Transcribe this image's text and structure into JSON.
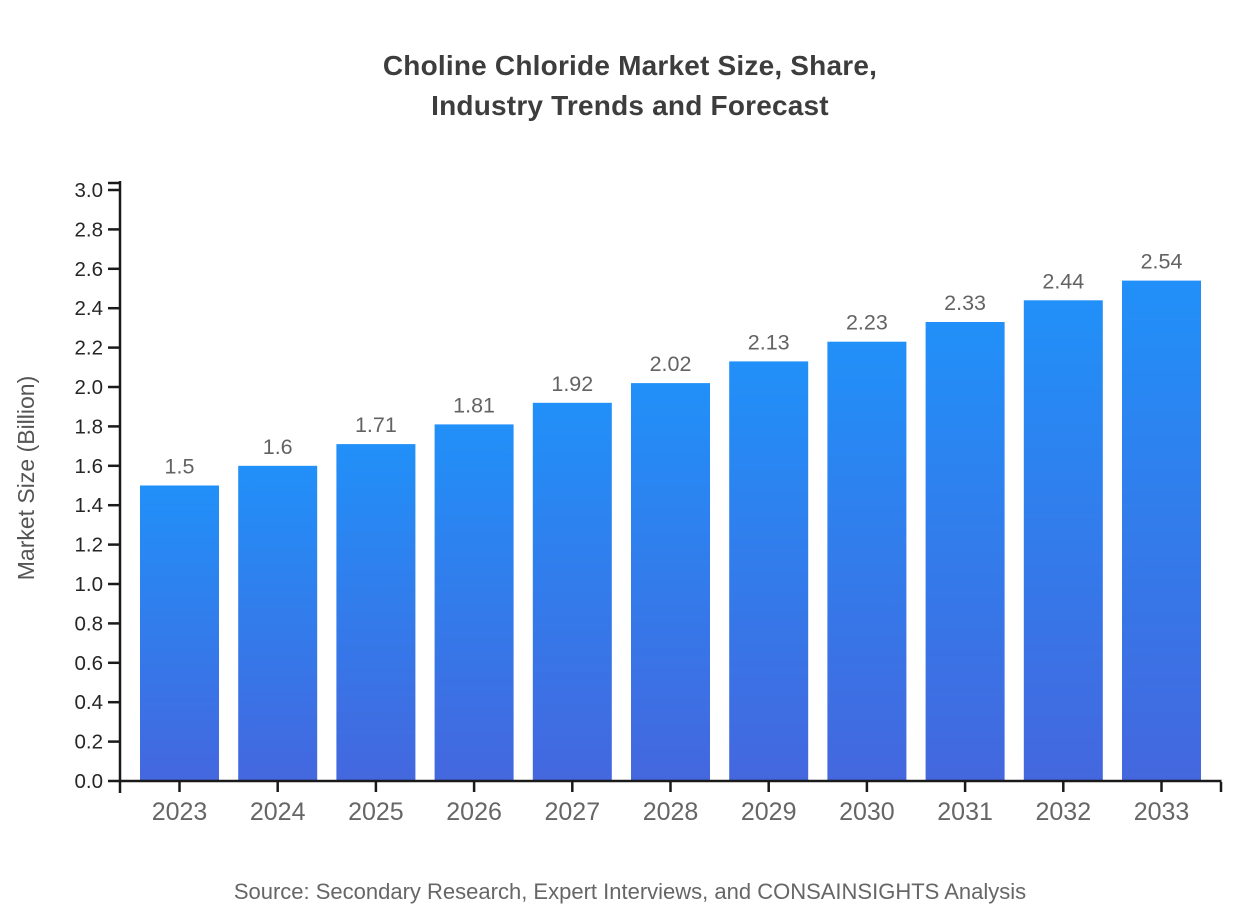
{
  "title": {
    "line1": "Choline Chloride Market Size, Share,",
    "line2": "Industry Trends and Forecast"
  },
  "footer": {
    "text": "Source: Secondary Research, Expert Interviews, and CONSAINSIGHTS Analysis"
  },
  "chart_data": {
    "type": "bar",
    "title": "Choline Chloride Market Size, Share, Industry Trends and Forecast",
    "categories": [
      "2023",
      "2024",
      "2025",
      "2026",
      "2027",
      "2028",
      "2029",
      "2030",
      "2031",
      "2032",
      "2033"
    ],
    "values": [
      1.5,
      1.6,
      1.71,
      1.81,
      1.92,
      2.02,
      2.13,
      2.23,
      2.33,
      2.44,
      2.54
    ],
    "value_labels": [
      "1.5",
      "1.6",
      "1.71",
      "1.81",
      "1.92",
      "2.02",
      "2.13",
      "2.23",
      "2.33",
      "2.44",
      "2.54"
    ],
    "xlabel": "",
    "ylabel": "Market Size (Billion)",
    "ylim": [
      0.0,
      3.0
    ],
    "ytick_step": 0.2,
    "grid": false,
    "legend": "none",
    "colors": {
      "bar_gradient_top": "#2190F8",
      "bar_gradient_bottom": "#4467DE",
      "axis_line": "#1a1a1a",
      "ytick_label": "#262626",
      "xtick_label": "#666666",
      "value_label": "#636363",
      "ylabel_text": "#555555",
      "title_text": "#3d3d3d",
      "footer_text": "#666666",
      "background": "#ffffff"
    }
  }
}
